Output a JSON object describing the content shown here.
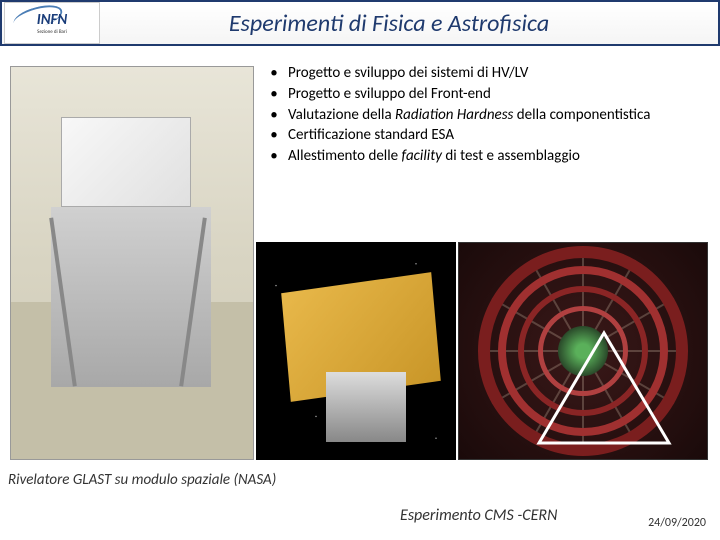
{
  "header": {
    "logo_main": "INFN",
    "logo_sub1": "Istituto Nazionale",
    "logo_sub2": "di Fisica Nucleare",
    "logo_sub3": "Sezione di Bari",
    "title": "Esperimenti di Fisica e Astrofisica"
  },
  "bullets": [
    "Progetto e sviluppo dei sistemi di HV/LV",
    "Progetto e sviluppo del Front-end",
    "Valutazione della <em>Radiation Hardness</em> della componentistica",
    "Certificazione standard ESA",
    "Allestimento delle <em>facility</em> di test e assemblaggio"
  ],
  "captions": {
    "left": "Rivelatore GLAST su modulo spaziale (NASA)",
    "right": "Esperimento CMS -CERN"
  },
  "footer": {
    "date": "24/09/2020"
  },
  "colors": {
    "header_border": "#1f3a6e",
    "title_color": "#1f3a6e",
    "logo_color": "#1a3d7a",
    "cms_ring": "#7a1e1e",
    "solar_panel": "#e8b84a"
  }
}
